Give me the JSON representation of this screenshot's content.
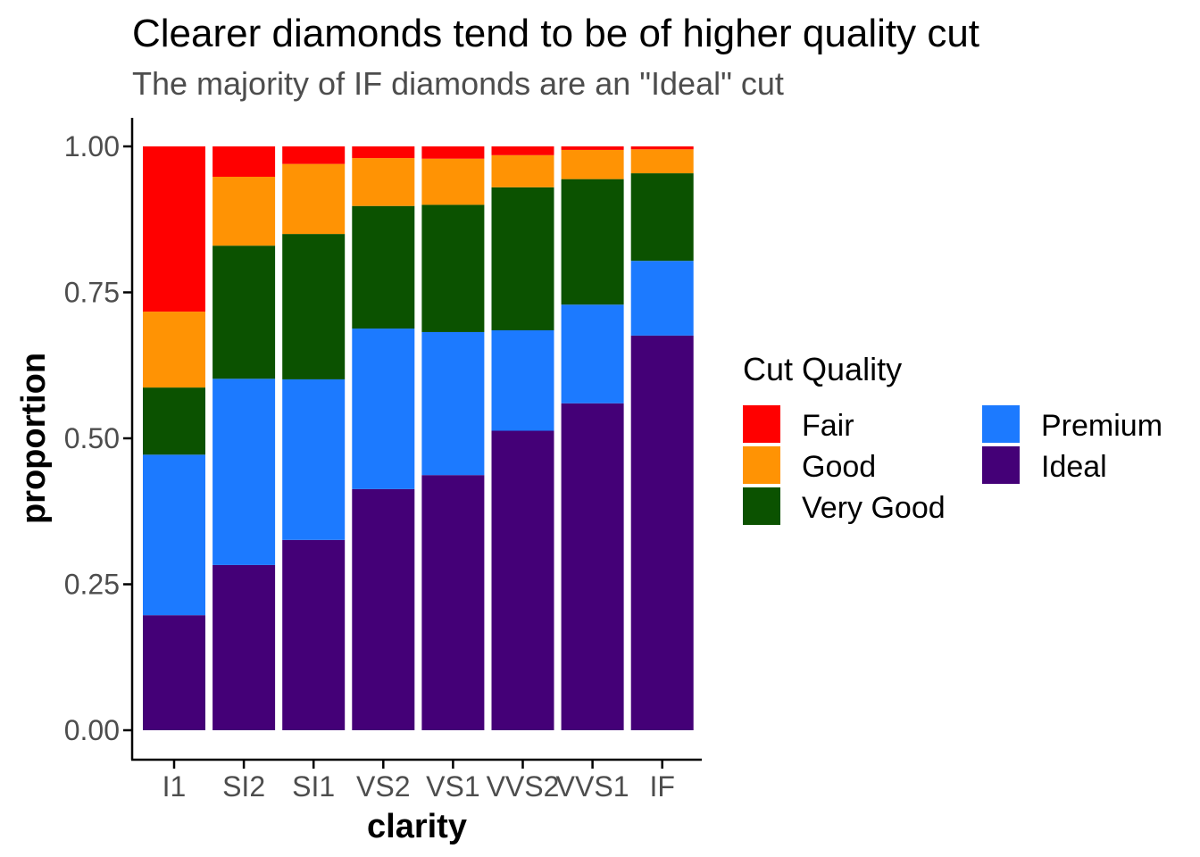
{
  "chart_data": {
    "type": "bar",
    "stacked": true,
    "title": "Clearer diamonds tend to be of higher quality cut",
    "subtitle": "The majority of IF diamonds are an \"Ideal\" cut",
    "xlabel": "clarity",
    "ylabel": "proportion",
    "ylim": [
      0,
      1
    ],
    "yticks": [
      0.0,
      0.25,
      0.5,
      0.75,
      1.0
    ],
    "ytick_labels": [
      "0.00",
      "0.25",
      "0.50",
      "0.75",
      "1.00"
    ],
    "grid": false,
    "legend_title": "Cut Quality",
    "legend_position": "right",
    "categories": [
      "I1",
      "SI2",
      "SI1",
      "VS2",
      "VS1",
      "VVS2",
      "VVS1",
      "IF"
    ],
    "series": [
      {
        "name": "Ideal",
        "color": "#440077",
        "values": [
          0.197,
          0.283,
          0.326,
          0.413,
          0.437,
          0.513,
          0.56,
          0.676
        ]
      },
      {
        "name": "Premium",
        "color": "#1c7aff",
        "values": [
          0.275,
          0.319,
          0.275,
          0.275,
          0.245,
          0.172,
          0.169,
          0.128
        ]
      },
      {
        "name": "Very Good",
        "color": "#0b5200",
        "values": [
          0.115,
          0.228,
          0.249,
          0.21,
          0.218,
          0.245,
          0.215,
          0.15
        ]
      },
      {
        "name": "Good",
        "color": "#ff9304",
        "values": [
          0.13,
          0.118,
          0.12,
          0.082,
          0.079,
          0.055,
          0.05,
          0.041
        ]
      },
      {
        "name": "Fair",
        "color": "#ff0000",
        "values": [
          0.283,
          0.052,
          0.03,
          0.02,
          0.021,
          0.015,
          0.006,
          0.005
        ]
      }
    ],
    "legend_order": [
      "Fair",
      "Good",
      "Very Good",
      "Premium",
      "Ideal"
    ]
  }
}
